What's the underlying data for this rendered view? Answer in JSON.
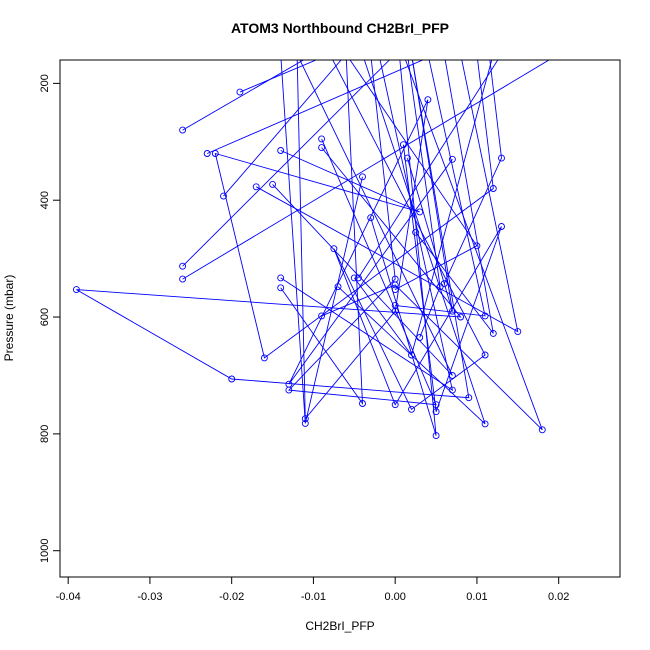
{
  "chart_data": {
    "type": "line",
    "title": "ATOM3 Northbound CH2BrI_PFP",
    "xlabel": "CH2BrI_PFP",
    "ylabel": "Pressure (mbar)",
    "xlim": [
      -0.041,
      0.0275
    ],
    "ylim": [
      1045,
      160
    ],
    "y_inverted": true,
    "x_ticks": [
      -0.04,
      -0.03,
      -0.02,
      -0.01,
      0.0,
      0.01,
      0.02
    ],
    "x_tick_labels": [
      "-0.04",
      "-0.03",
      "-0.02",
      "-0.01",
      "0.00",
      "0.01",
      "0.02"
    ],
    "y_ticks": [
      200,
      400,
      600,
      800,
      1000
    ],
    "y_tick_labels": [
      "200",
      "400",
      "600",
      "800",
      "1000"
    ],
    "grid": false,
    "legend": "none",
    "colors": {
      "series": "#0000ff",
      "axis": "#000000",
      "background": "#ffffff"
    },
    "series": [
      {
        "points": [
          {
            "x": 0.001,
            "y": 305
          },
          {
            "x": 0.005,
            "y": 762
          },
          {
            "x": 0.013,
            "y": 445
          },
          {
            "x": 0.0,
            "y": 750
          },
          {
            "x": -0.0075,
            "y": 483
          },
          {
            "x": 0.002,
            "y": 758
          },
          {
            "x": 0.011,
            "y": 665
          },
          {
            "x": -0.008,
            "y": 150
          }
        ]
      },
      {
        "points": [
          {
            "x": 0.007,
            "y": 330
          },
          {
            "x": -0.013,
            "y": 715
          },
          {
            "x": 0.004,
            "y": 228
          },
          {
            "x": 0.0,
            "y": 590
          },
          {
            "x": -0.011,
            "y": 774
          },
          {
            "x": -0.012,
            "y": 150
          }
        ]
      },
      {
        "points": [
          {
            "x": -0.026,
            "y": 280
          },
          {
            "x": -0.01,
            "y": 150
          }
        ]
      },
      {
        "points": [
          {
            "x": -0.023,
            "y": 320
          },
          {
            "x": 0.005,
            "y": 150
          }
        ]
      },
      {
        "points": [
          {
            "x": -0.014,
            "y": 315
          },
          {
            "x": 0.003,
            "y": 420
          },
          {
            "x": -0.022,
            "y": 320
          },
          {
            "x": -0.016,
            "y": 670
          },
          {
            "x": 0.012,
            "y": 380
          },
          {
            "x": 0.01,
            "y": 150
          }
        ]
      },
      {
        "points": [
          {
            "x": -0.021,
            "y": 393
          },
          {
            "x": -0.006,
            "y": 150
          }
        ]
      },
      {
        "points": [
          {
            "x": -0.019,
            "y": 215
          },
          {
            "x": -0.008,
            "y": 150
          }
        ]
      },
      {
        "points": [
          {
            "x": -0.017,
            "y": 377
          },
          {
            "x": 0.015,
            "y": 625
          },
          {
            "x": 0.008,
            "y": 150
          }
        ]
      },
      {
        "points": [
          {
            "x": -0.015,
            "y": 373
          },
          {
            "x": 0.007,
            "y": 700
          },
          {
            "x": -0.012,
            "y": 150
          }
        ]
      },
      {
        "points": [
          {
            "x": -0.009,
            "y": 295
          },
          {
            "x": 0.005,
            "y": 750
          },
          {
            "x": -0.013,
            "y": 725
          },
          {
            "x": 0.0,
            "y": 535
          },
          {
            "x": -0.003,
            "y": 150
          }
        ]
      },
      {
        "points": [
          {
            "x": -0.009,
            "y": 310
          },
          {
            "x": 0.008,
            "y": 600
          },
          {
            "x": -0.039,
            "y": 553
          },
          {
            "x": -0.02,
            "y": 706
          },
          {
            "x": 0.009,
            "y": 738
          },
          {
            "x": 0.002,
            "y": 150
          }
        ]
      },
      {
        "points": [
          {
            "x": -0.026,
            "y": 513
          },
          {
            "x": 0.0,
            "y": 150
          }
        ]
      },
      {
        "points": [
          {
            "x": -0.026,
            "y": 535
          },
          {
            "x": 0.02,
            "y": 150
          }
        ]
      },
      {
        "points": [
          {
            "x": -0.004,
            "y": 360
          },
          {
            "x": -0.011,
            "y": 782
          },
          {
            "x": -0.014,
            "y": 150
          }
        ]
      },
      {
        "points": [
          {
            "x": -0.003,
            "y": 430
          },
          {
            "x": 0.005,
            "y": 803
          },
          {
            "x": 0.0005,
            "y": 150
          }
        ]
      },
      {
        "points": [
          {
            "x": -0.014,
            "y": 533
          },
          {
            "x": 0.007,
            "y": 725
          },
          {
            "x": -0.002,
            "y": 150
          }
        ]
      },
      {
        "points": [
          {
            "x": -0.014,
            "y": 550
          },
          {
            "x": -0.004,
            "y": 748
          },
          {
            "x": -0.006,
            "y": 150
          }
        ]
      },
      {
        "points": [
          {
            "x": -0.009,
            "y": 598
          },
          {
            "x": 0.0,
            "y": 545
          },
          {
            "x": 0.018,
            "y": 793
          },
          {
            "x": 0.001,
            "y": 150
          }
        ]
      },
      {
        "points": [
          {
            "x": -0.007,
            "y": 548
          },
          {
            "x": 0.011,
            "y": 783
          },
          {
            "x": -0.004,
            "y": 150
          }
        ]
      },
      {
        "points": [
          {
            "x": -0.005,
            "y": 533
          },
          {
            "x": 0.002,
            "y": 665
          },
          {
            "x": 0.012,
            "y": 150
          }
        ]
      },
      {
        "points": [
          {
            "x": 0.0,
            "y": 553
          },
          {
            "x": 0.01,
            "y": 478
          },
          {
            "x": -0.006,
            "y": 150
          }
        ]
      },
      {
        "points": [
          {
            "x": 0.0,
            "y": 580
          },
          {
            "x": 0.011,
            "y": 598
          },
          {
            "x": 0.004,
            "y": 150
          }
        ]
      },
      {
        "points": [
          {
            "x": 0.0015,
            "y": 328
          },
          {
            "x": 0.007,
            "y": 590
          },
          {
            "x": 0.002,
            "y": 150
          }
        ]
      },
      {
        "points": [
          {
            "x": 0.0025,
            "y": 455
          },
          {
            "x": 0.012,
            "y": 628
          },
          {
            "x": 0.006,
            "y": 150
          }
        ]
      },
      {
        "points": [
          {
            "x": 0.003,
            "y": 635
          },
          {
            "x": 0.0055,
            "y": 548
          },
          {
            "x": 0.0015,
            "y": 150
          }
        ]
      },
      {
        "points": [
          {
            "x": 0.006,
            "y": 543
          },
          {
            "x": 0.013,
            "y": 328
          },
          {
            "x": 0.0115,
            "y": 150
          }
        ]
      },
      {
        "points": [
          {
            "x": -0.0045,
            "y": 533
          },
          {
            "x": 0.013,
            "y": 150
          }
        ]
      }
    ]
  }
}
